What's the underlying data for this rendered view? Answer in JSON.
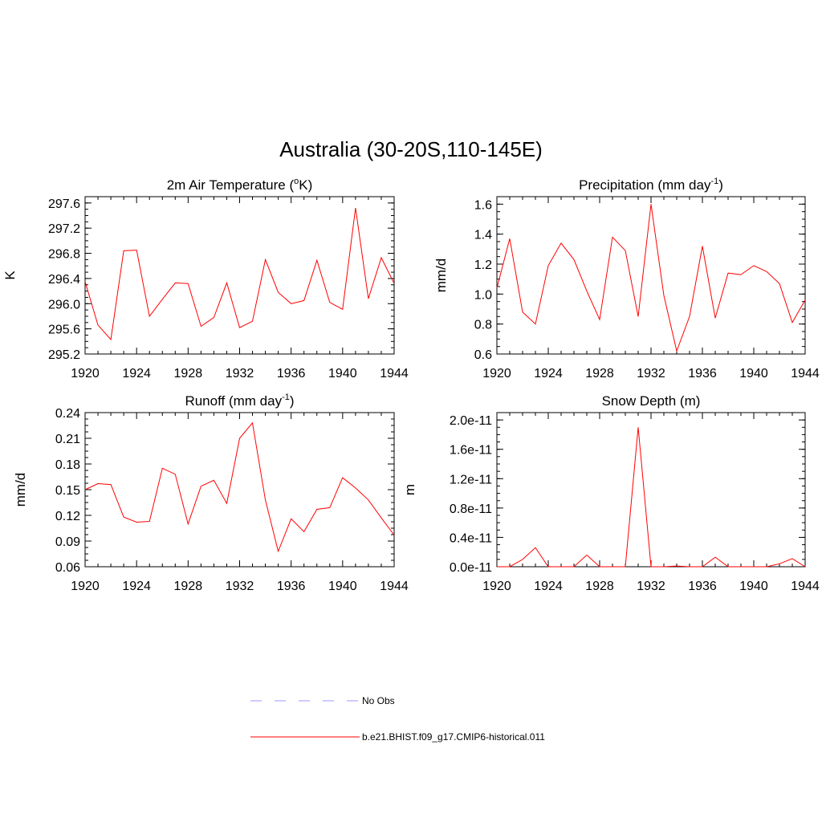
{
  "title": "Australia (30-20S,110-145E)",
  "chart_data": [
    {
      "type": "line",
      "title": "2m Air Temperature (",
      "title_sup": "o",
      "title_tail": "K)",
      "ylabel": "K",
      "xlim": [
        1920,
        1944
      ],
      "ylim": [
        295.2,
        297.7
      ],
      "xticks": [
        "1920",
        "1924",
        "1928",
        "1932",
        "1936",
        "1940",
        "1944"
      ],
      "yticks": [
        "295.2",
        "295.6",
        "296.0",
        "296.4",
        "296.8",
        "297.2",
        "297.6"
      ],
      "series": [
        {
          "name": "b.e21.BHIST.f09_g17.CMIP6-historical.011",
          "color": "#ff0000",
          "x": [
            1920,
            1921,
            1922,
            1923,
            1924,
            1925,
            1926,
            1927,
            1928,
            1929,
            1930,
            1931,
            1932,
            1933,
            1934,
            1935,
            1936,
            1937,
            1938,
            1939,
            1940,
            1941,
            1942,
            1943,
            1944
          ],
          "y": [
            296.35,
            295.66,
            295.43,
            296.84,
            296.85,
            295.8,
            296.07,
            296.33,
            296.32,
            295.64,
            295.78,
            296.33,
            295.62,
            295.72,
            296.7,
            296.18,
            296.0,
            296.05,
            296.69,
            296.02,
            295.91,
            297.52,
            296.08,
            296.73,
            296.32
          ]
        }
      ]
    },
    {
      "type": "line",
      "title": "Precipitation (mm day",
      "title_sup": "-1",
      "title_tail": ")",
      "ylabel": "mm/d",
      "xlim": [
        1920,
        1944
      ],
      "ylim": [
        0.6,
        1.65
      ],
      "xticks": [
        "1920",
        "1924",
        "1928",
        "1932",
        "1936",
        "1940",
        "1944"
      ],
      "yticks": [
        "0.6",
        "0.8",
        "1.0",
        "1.2",
        "1.4",
        "1.6"
      ],
      "series": [
        {
          "name": "b.e21.BHIST.f09_g17.CMIP6-historical.011",
          "color": "#ff0000",
          "x": [
            1920,
            1921,
            1922,
            1923,
            1924,
            1925,
            1926,
            1927,
            1928,
            1929,
            1930,
            1931,
            1932,
            1933,
            1934,
            1935,
            1936,
            1937,
            1938,
            1939,
            1940,
            1941,
            1942,
            1943,
            1944
          ],
          "y": [
            1.04,
            1.37,
            0.88,
            0.8,
            1.19,
            1.34,
            1.23,
            1.02,
            0.83,
            1.38,
            1.29,
            0.85,
            1.6,
            0.99,
            0.62,
            0.85,
            1.32,
            0.84,
            1.14,
            1.13,
            1.19,
            1.15,
            1.07,
            0.81,
            0.96
          ]
        }
      ]
    },
    {
      "type": "line",
      "title": "Runoff (mm day",
      "title_sup": "-1",
      "title_tail": ")",
      "ylabel": "mm/d",
      "xlim": [
        1920,
        1944
      ],
      "ylim": [
        0.06,
        0.24
      ],
      "xticks": [
        "1920",
        "1924",
        "1928",
        "1932",
        "1936",
        "1940",
        "1944"
      ],
      "yticks": [
        "0.06",
        "0.09",
        "0.12",
        "0.15",
        "0.18",
        "0.21",
        "0.24"
      ],
      "series": [
        {
          "name": "b.e21.BHIST.f09_g17.CMIP6-historical.011",
          "color": "#ff0000",
          "x": [
            1920,
            1921,
            1922,
            1923,
            1924,
            1925,
            1926,
            1927,
            1928,
            1929,
            1930,
            1931,
            1932,
            1933,
            1934,
            1935,
            1936,
            1937,
            1938,
            1939,
            1940,
            1941,
            1942,
            1943,
            1944
          ],
          "y": [
            0.15,
            0.157,
            0.156,
            0.118,
            0.112,
            0.113,
            0.175,
            0.168,
            0.11,
            0.154,
            0.161,
            0.134,
            0.21,
            0.228,
            0.138,
            0.078,
            0.116,
            0.101,
            0.127,
            0.129,
            0.164,
            0.152,
            0.138,
            0.117,
            0.097
          ]
        }
      ]
    },
    {
      "type": "line",
      "title": "Snow Depth (m)",
      "title_sup": "",
      "title_tail": "",
      "ylabel": "m",
      "xlim": [
        1920,
        1944
      ],
      "ylim": [
        0,
        2.1e-11
      ],
      "xticks": [
        "1920",
        "1924",
        "1928",
        "1932",
        "1936",
        "1940",
        "1944"
      ],
      "yticks": [
        "0.0e-11",
        "0.4e-11",
        "0.8e-11",
        "1.2e-11",
        "1.6e-11",
        "2.0e-11"
      ],
      "series": [
        {
          "name": "b.e21.BHIST.f09_g17.CMIP6-historical.011",
          "color": "#ff0000",
          "x": [
            1920,
            1921,
            1922,
            1923,
            1924,
            1925,
            1926,
            1927,
            1928,
            1929,
            1930,
            1931,
            1932,
            1933,
            1934,
            1935,
            1936,
            1937,
            1938,
            1939,
            1940,
            1941,
            1942,
            1943,
            1944
          ],
          "y": [
            0,
            0,
            1e-12,
            2.6e-12,
            0,
            0,
            0,
            1.6e-12,
            0,
            0,
            0,
            1.9e-11,
            0,
            0,
            1e-13,
            0,
            0,
            1.3e-12,
            0,
            0,
            0,
            0,
            4e-13,
            1.1e-12,
            0
          ]
        }
      ]
    }
  ],
  "legend": [
    {
      "label": "No Obs",
      "color": "#9999ff",
      "style": "dashed"
    },
    {
      "label": "b.e21.BHIST.f09_g17.CMIP6-historical.011",
      "color": "#ff0000",
      "style": "solid"
    }
  ]
}
